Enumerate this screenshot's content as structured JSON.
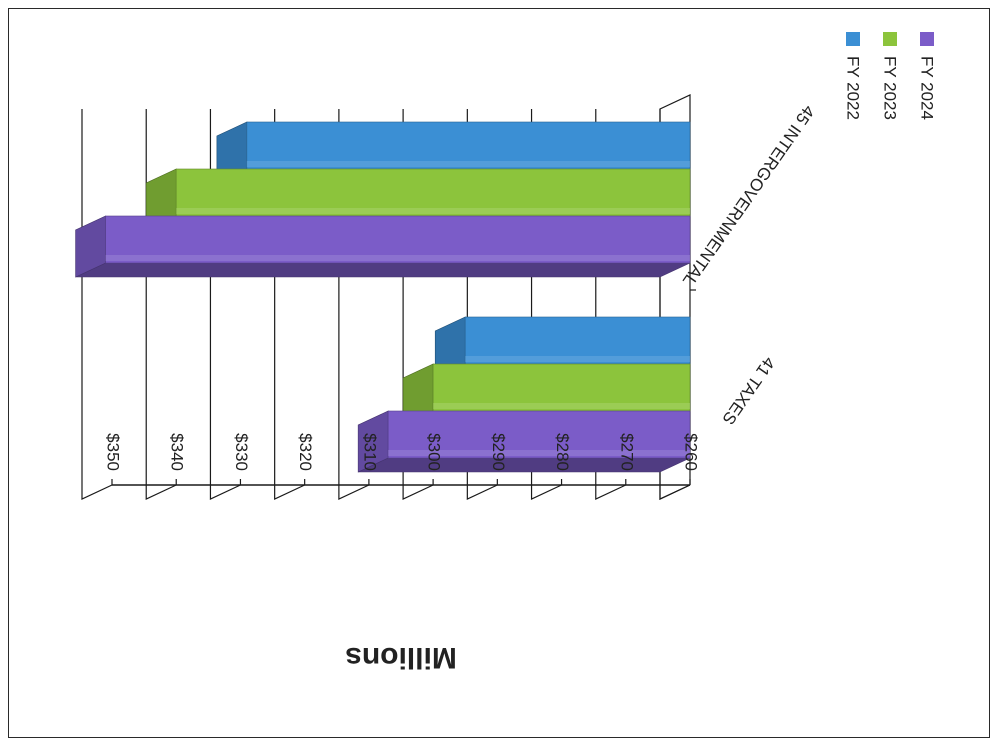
{
  "chart_data": {
    "type": "bar",
    "orientation": "horizontal-3d",
    "title": "",
    "ylabel": "Millions",
    "xlabel": "",
    "categories": [
      "41 TAXES",
      "45 INTERGOVERNMENTAL"
    ],
    "series": [
      {
        "name": "FY 2022",
        "values": [
          295,
          329
        ],
        "color": "#3b8fd4"
      },
      {
        "name": "FY 2023",
        "values": [
          300,
          340
        ],
        "color": "#8cc43c"
      },
      {
        "name": "FY 2024",
        "values": [
          307,
          351
        ],
        "color": "#7b5cc8"
      }
    ],
    "ylim": [
      260,
      350
    ],
    "yticks": [
      "$260",
      "$270",
      "$280",
      "$290",
      "$300",
      "$310",
      "$320",
      "$330",
      "$340",
      "$350"
    ],
    "grid": true,
    "legend": "right"
  },
  "colors": {
    "frame": "#2a2a2a",
    "grid": "#1a1a1a",
    "text": "#222222"
  }
}
